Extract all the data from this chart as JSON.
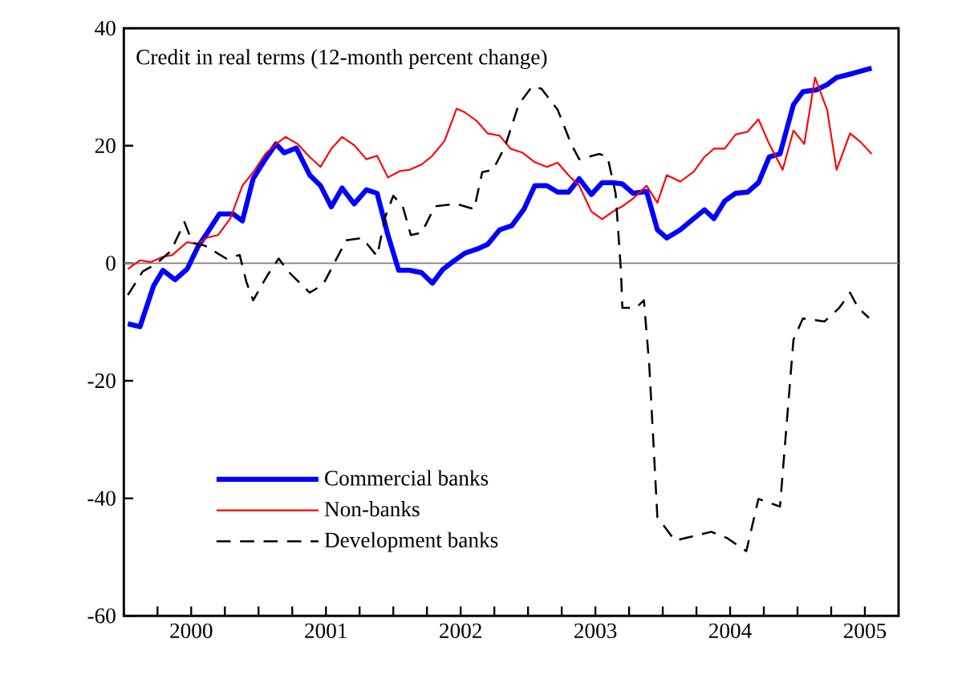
{
  "chart_data": {
    "type": "line",
    "annotations": [
      "Credit in real terms (12-month percent change)"
    ],
    "xlim": [
      2000,
      2005.75
    ],
    "xticks": [
      {
        "value": 2000,
        "label": null
      },
      {
        "value": 2000.25,
        "label": null
      },
      {
        "value": 2000.5,
        "label": "2000"
      },
      {
        "value": 2000.75,
        "label": null
      },
      {
        "value": 2001,
        "label": null
      },
      {
        "value": 2001.25,
        "label": null
      },
      {
        "value": 2001.5,
        "label": "2001"
      },
      {
        "value": 2001.75,
        "label": null
      },
      {
        "value": 2002,
        "label": null
      },
      {
        "value": 2002.25,
        "label": null
      },
      {
        "value": 2002.5,
        "label": "2002"
      },
      {
        "value": 2002.75,
        "label": null
      },
      {
        "value": 2003,
        "label": null
      },
      {
        "value": 2003.25,
        "label": null
      },
      {
        "value": 2003.5,
        "label": "2003"
      },
      {
        "value": 2003.75,
        "label": null
      },
      {
        "value": 2004,
        "label": null
      },
      {
        "value": 2004.25,
        "label": null
      },
      {
        "value": 2004.5,
        "label": "2004"
      },
      {
        "value": 2004.75,
        "label": null
      },
      {
        "value": 2005,
        "label": null
      },
      {
        "value": 2005.25,
        "label": null
      },
      {
        "value": 2005.5,
        "label": "2005"
      }
    ],
    "ylim": [
      -60,
      40
    ],
    "yticks": [
      -60,
      -40,
      -20,
      0,
      20,
      40
    ],
    "ref_lines": [
      {
        "axis": "y",
        "value": 0,
        "color": "#808080"
      }
    ],
    "legend": "bottom left",
    "marker": "none",
    "series": [
      {
        "name": "Commercial banks",
        "color": "#0000ff",
        "line_style": "solid",
        "x": [
          2000.03,
          2000.12,
          2000.22,
          2000.29,
          2000.38,
          2000.47,
          2000.55,
          2000.62,
          2000.71,
          2000.81,
          2000.88,
          2000.96,
          2001.05,
          2001.13,
          2001.19,
          2001.28,
          2001.38,
          2001.46,
          2001.54,
          2001.62,
          2001.71,
          2001.8,
          2001.88,
          2001.96,
          2002.04,
          2002.12,
          2002.21,
          2002.29,
          2002.37,
          2002.45,
          2002.53,
          2002.62,
          2002.7,
          2002.79,
          2002.88,
          2002.97,
          2003.05,
          2003.14,
          2003.22,
          2003.3,
          2003.38,
          2003.47,
          2003.55,
          2003.63,
          2003.7,
          2003.78,
          2003.88,
          2003.96,
          2004.03,
          2004.13,
          2004.23,
          2004.31,
          2004.38,
          2004.46,
          2004.54,
          2004.63,
          2004.71,
          2004.79,
          2004.87,
          2004.97,
          2005.04,
          2005.14,
          2005.22,
          2005.29,
          2005.41,
          2005.55
        ],
        "values": [
          -10.3,
          -10.8,
          -3.9,
          -1.2,
          -2.8,
          -1.0,
          2.8,
          5.2,
          8.4,
          8.4,
          7.2,
          14.4,
          17.7,
          20.3,
          18.8,
          19.6,
          15.0,
          13.2,
          9.6,
          12.8,
          10.1,
          12.5,
          11.9,
          4.8,
          -1.2,
          -1.2,
          -1.6,
          -3.4,
          -1.0,
          0.4,
          1.7,
          2.4,
          3.2,
          5.7,
          6.4,
          9.2,
          13.2,
          13.2,
          12.1,
          12.1,
          14.4,
          11.7,
          13.7,
          13.7,
          13.5,
          11.9,
          12.2,
          5.7,
          4.3,
          5.7,
          7.6,
          9.1,
          7.6,
          10.6,
          11.9,
          12.1,
          13.7,
          18.1,
          18.6,
          27.0,
          29.2,
          29.5,
          30.4,
          31.6,
          32.3,
          33.2
        ]
      },
      {
        "name": "Non-banks",
        "color": "#ff0000",
        "line_style": "solid",
        "x": [
          2000.03,
          2000.12,
          2000.2,
          2000.29,
          2000.36,
          2000.47,
          2000.55,
          2000.62,
          2000.7,
          2000.79,
          2000.88,
          2000.96,
          2001.05,
          2001.13,
          2001.2,
          2001.29,
          2001.37,
          2001.46,
          2001.54,
          2001.62,
          2001.71,
          2001.8,
          2001.88,
          2001.96,
          2002.05,
          2002.12,
          2002.21,
          2002.29,
          2002.38,
          2002.47,
          2002.53,
          2002.62,
          2002.7,
          2002.79,
          2002.87,
          2002.96,
          2003.05,
          2003.14,
          2003.22,
          2003.3,
          2003.38,
          2003.47,
          2003.55,
          2003.63,
          2003.7,
          2003.78,
          2003.88,
          2003.96,
          2004.03,
          2004.13,
          2004.23,
          2004.31,
          2004.38,
          2004.46,
          2004.54,
          2004.63,
          2004.71,
          2004.79,
          2004.89,
          2004.97,
          2005.05,
          2005.13,
          2005.22,
          2005.29,
          2005.39,
          2005.47,
          2005.55
        ],
        "values": [
          -1.0,
          0.5,
          0.2,
          1.1,
          1.4,
          3.6,
          3.2,
          4.4,
          4.8,
          7.6,
          13.2,
          15.5,
          18.6,
          20.3,
          21.5,
          20.3,
          18.3,
          16.4,
          19.5,
          21.5,
          20.1,
          17.7,
          18.3,
          14.6,
          15.7,
          15.9,
          16.8,
          18.3,
          20.8,
          26.3,
          25.7,
          24.2,
          22.1,
          21.7,
          19.5,
          18.8,
          17.2,
          16.4,
          17.1,
          15.0,
          13.2,
          8.8,
          7.5,
          8.8,
          9.7,
          11.0,
          13.2,
          10.3,
          15.0,
          13.9,
          15.6,
          18.1,
          19.5,
          19.5,
          21.9,
          22.4,
          24.5,
          20.3,
          15.9,
          22.6,
          20.3,
          31.6,
          26.1,
          15.9,
          22.1,
          20.6,
          18.6
        ]
      },
      {
        "name": "Development banks",
        "color": "#000000",
        "line_style": "dashed",
        "x": [
          2000.03,
          2000.14,
          2000.24,
          2000.35,
          2000.45,
          2000.51,
          2000.6,
          2000.76,
          2000.86,
          2000.91,
          2000.96,
          2001.07,
          2001.15,
          2001.22,
          2001.38,
          2001.48,
          2001.55,
          2001.65,
          2001.77,
          2001.88,
          2001.94,
          2002.0,
          2002.07,
          2002.13,
          2002.21,
          2002.31,
          2002.47,
          2002.6,
          2002.66,
          2002.74,
          2002.83,
          2002.93,
          2003.03,
          2003.1,
          2003.22,
          2003.32,
          2003.38,
          2003.53,
          2003.59,
          2003.65,
          2003.69,
          2003.7,
          2003.8,
          2003.86,
          2003.9,
          2003.96,
          2004.09,
          2004.36,
          2004.48,
          2004.62,
          2004.71,
          2004.87,
          2004.97,
          2005.04,
          2005.2,
          2005.31,
          2005.39,
          2005.45,
          2005.53
        ],
        "values": [
          -5.4,
          -1.4,
          -0.1,
          2.1,
          7.0,
          3.5,
          3.0,
          0.8,
          1.4,
          -3.2,
          -6.3,
          -1.9,
          0.8,
          -1.4,
          -5.0,
          -3.6,
          -0.5,
          3.9,
          4.3,
          1.2,
          7.9,
          11.5,
          9.7,
          4.8,
          5.2,
          9.7,
          10.1,
          9.2,
          15.5,
          15.9,
          19.9,
          27.0,
          30.1,
          29.7,
          26.1,
          20.3,
          17.7,
          18.6,
          18.1,
          11.9,
          -1.4,
          -7.6,
          -7.6,
          -6.3,
          -17.4,
          -43.2,
          -47.2,
          -45.7,
          -46.8,
          -49.0,
          -40.1,
          -41.4,
          -13.0,
          -9.4,
          -9.9,
          -7.6,
          -5.0,
          -7.6,
          -9.3
        ]
      }
    ]
  }
}
